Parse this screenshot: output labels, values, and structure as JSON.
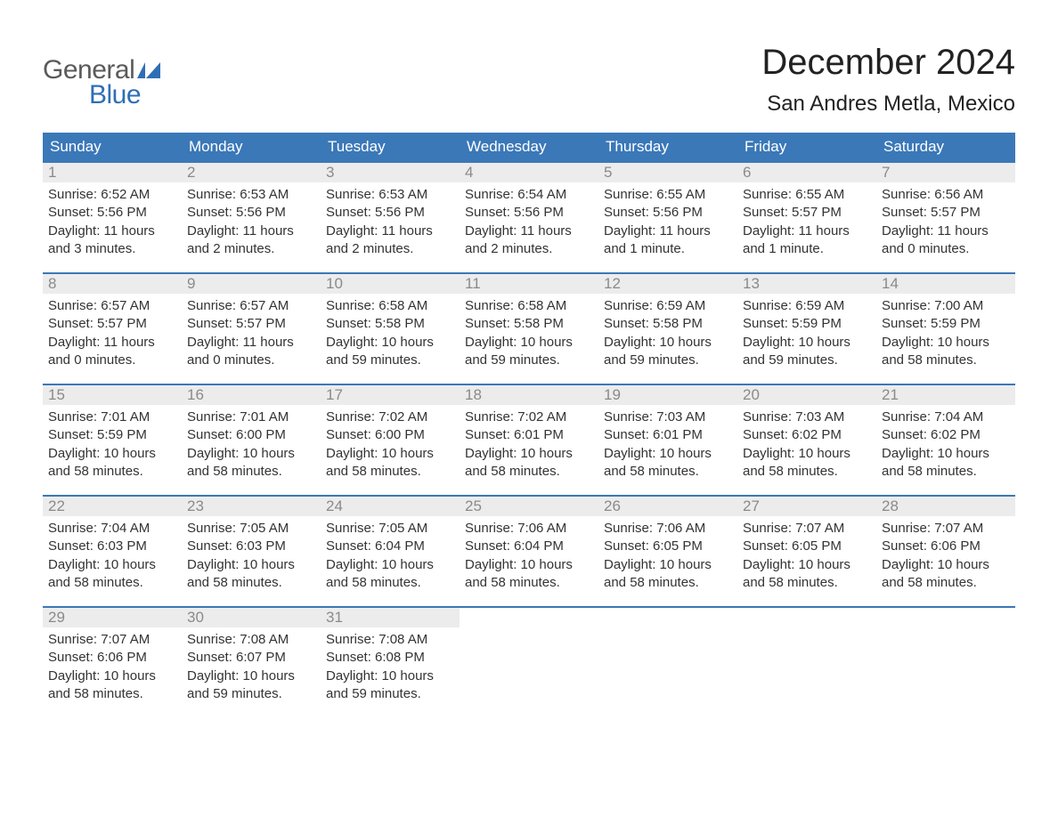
{
  "logo": {
    "text1": "General",
    "text2": "Blue",
    "flag_color": "#2f6eb5",
    "text1_color": "#5a5a5a"
  },
  "header": {
    "month_title": "December 2024",
    "location": "San Andres Metla, Mexico"
  },
  "colors": {
    "header_bg": "#3b78b8",
    "header_text": "#ffffff",
    "daynum_bg": "#ececec",
    "daynum_text": "#8a8a8a",
    "week_border": "#3b78b8",
    "body_text": "#333333"
  },
  "weekdays": [
    "Sunday",
    "Monday",
    "Tuesday",
    "Wednesday",
    "Thursday",
    "Friday",
    "Saturday"
  ],
  "weeks": [
    [
      {
        "n": "1",
        "sunrise": "Sunrise: 6:52 AM",
        "sunset": "Sunset: 5:56 PM",
        "day1": "Daylight: 11 hours",
        "day2": "and 3 minutes."
      },
      {
        "n": "2",
        "sunrise": "Sunrise: 6:53 AM",
        "sunset": "Sunset: 5:56 PM",
        "day1": "Daylight: 11 hours",
        "day2": "and 2 minutes."
      },
      {
        "n": "3",
        "sunrise": "Sunrise: 6:53 AM",
        "sunset": "Sunset: 5:56 PM",
        "day1": "Daylight: 11 hours",
        "day2": "and 2 minutes."
      },
      {
        "n": "4",
        "sunrise": "Sunrise: 6:54 AM",
        "sunset": "Sunset: 5:56 PM",
        "day1": "Daylight: 11 hours",
        "day2": "and 2 minutes."
      },
      {
        "n": "5",
        "sunrise": "Sunrise: 6:55 AM",
        "sunset": "Sunset: 5:56 PM",
        "day1": "Daylight: 11 hours",
        "day2": "and 1 minute."
      },
      {
        "n": "6",
        "sunrise": "Sunrise: 6:55 AM",
        "sunset": "Sunset: 5:57 PM",
        "day1": "Daylight: 11 hours",
        "day2": "and 1 minute."
      },
      {
        "n": "7",
        "sunrise": "Sunrise: 6:56 AM",
        "sunset": "Sunset: 5:57 PM",
        "day1": "Daylight: 11 hours",
        "day2": "and 0 minutes."
      }
    ],
    [
      {
        "n": "8",
        "sunrise": "Sunrise: 6:57 AM",
        "sunset": "Sunset: 5:57 PM",
        "day1": "Daylight: 11 hours",
        "day2": "and 0 minutes."
      },
      {
        "n": "9",
        "sunrise": "Sunrise: 6:57 AM",
        "sunset": "Sunset: 5:57 PM",
        "day1": "Daylight: 11 hours",
        "day2": "and 0 minutes."
      },
      {
        "n": "10",
        "sunrise": "Sunrise: 6:58 AM",
        "sunset": "Sunset: 5:58 PM",
        "day1": "Daylight: 10 hours",
        "day2": "and 59 minutes."
      },
      {
        "n": "11",
        "sunrise": "Sunrise: 6:58 AM",
        "sunset": "Sunset: 5:58 PM",
        "day1": "Daylight: 10 hours",
        "day2": "and 59 minutes."
      },
      {
        "n": "12",
        "sunrise": "Sunrise: 6:59 AM",
        "sunset": "Sunset: 5:58 PM",
        "day1": "Daylight: 10 hours",
        "day2": "and 59 minutes."
      },
      {
        "n": "13",
        "sunrise": "Sunrise: 6:59 AM",
        "sunset": "Sunset: 5:59 PM",
        "day1": "Daylight: 10 hours",
        "day2": "and 59 minutes."
      },
      {
        "n": "14",
        "sunrise": "Sunrise: 7:00 AM",
        "sunset": "Sunset: 5:59 PM",
        "day1": "Daylight: 10 hours",
        "day2": "and 58 minutes."
      }
    ],
    [
      {
        "n": "15",
        "sunrise": "Sunrise: 7:01 AM",
        "sunset": "Sunset: 5:59 PM",
        "day1": "Daylight: 10 hours",
        "day2": "and 58 minutes."
      },
      {
        "n": "16",
        "sunrise": "Sunrise: 7:01 AM",
        "sunset": "Sunset: 6:00 PM",
        "day1": "Daylight: 10 hours",
        "day2": "and 58 minutes."
      },
      {
        "n": "17",
        "sunrise": "Sunrise: 7:02 AM",
        "sunset": "Sunset: 6:00 PM",
        "day1": "Daylight: 10 hours",
        "day2": "and 58 minutes."
      },
      {
        "n": "18",
        "sunrise": "Sunrise: 7:02 AM",
        "sunset": "Sunset: 6:01 PM",
        "day1": "Daylight: 10 hours",
        "day2": "and 58 minutes."
      },
      {
        "n": "19",
        "sunrise": "Sunrise: 7:03 AM",
        "sunset": "Sunset: 6:01 PM",
        "day1": "Daylight: 10 hours",
        "day2": "and 58 minutes."
      },
      {
        "n": "20",
        "sunrise": "Sunrise: 7:03 AM",
        "sunset": "Sunset: 6:02 PM",
        "day1": "Daylight: 10 hours",
        "day2": "and 58 minutes."
      },
      {
        "n": "21",
        "sunrise": "Sunrise: 7:04 AM",
        "sunset": "Sunset: 6:02 PM",
        "day1": "Daylight: 10 hours",
        "day2": "and 58 minutes."
      }
    ],
    [
      {
        "n": "22",
        "sunrise": "Sunrise: 7:04 AM",
        "sunset": "Sunset: 6:03 PM",
        "day1": "Daylight: 10 hours",
        "day2": "and 58 minutes."
      },
      {
        "n": "23",
        "sunrise": "Sunrise: 7:05 AM",
        "sunset": "Sunset: 6:03 PM",
        "day1": "Daylight: 10 hours",
        "day2": "and 58 minutes."
      },
      {
        "n": "24",
        "sunrise": "Sunrise: 7:05 AM",
        "sunset": "Sunset: 6:04 PM",
        "day1": "Daylight: 10 hours",
        "day2": "and 58 minutes."
      },
      {
        "n": "25",
        "sunrise": "Sunrise: 7:06 AM",
        "sunset": "Sunset: 6:04 PM",
        "day1": "Daylight: 10 hours",
        "day2": "and 58 minutes."
      },
      {
        "n": "26",
        "sunrise": "Sunrise: 7:06 AM",
        "sunset": "Sunset: 6:05 PM",
        "day1": "Daylight: 10 hours",
        "day2": "and 58 minutes."
      },
      {
        "n": "27",
        "sunrise": "Sunrise: 7:07 AM",
        "sunset": "Sunset: 6:05 PM",
        "day1": "Daylight: 10 hours",
        "day2": "and 58 minutes."
      },
      {
        "n": "28",
        "sunrise": "Sunrise: 7:07 AM",
        "sunset": "Sunset: 6:06 PM",
        "day1": "Daylight: 10 hours",
        "day2": "and 58 minutes."
      }
    ],
    [
      {
        "n": "29",
        "sunrise": "Sunrise: 7:07 AM",
        "sunset": "Sunset: 6:06 PM",
        "day1": "Daylight: 10 hours",
        "day2": "and 58 minutes."
      },
      {
        "n": "30",
        "sunrise": "Sunrise: 7:08 AM",
        "sunset": "Sunset: 6:07 PM",
        "day1": "Daylight: 10 hours",
        "day2": "and 59 minutes."
      },
      {
        "n": "31",
        "sunrise": "Sunrise: 7:08 AM",
        "sunset": "Sunset: 6:08 PM",
        "day1": "Daylight: 10 hours",
        "day2": "and 59 minutes."
      },
      null,
      null,
      null,
      null
    ]
  ]
}
